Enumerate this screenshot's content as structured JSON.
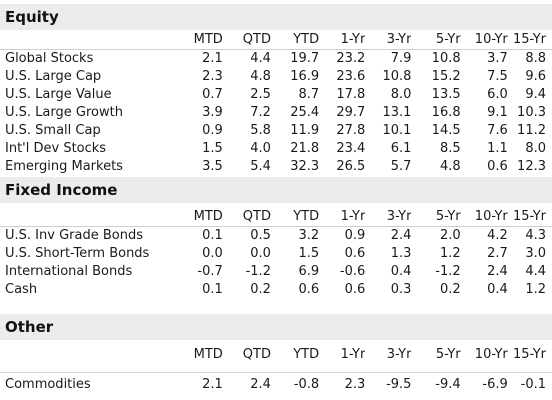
{
  "columns": [
    "MTD",
    "QTD",
    "YTD",
    "1-Yr",
    "3-Yr",
    "5-Yr",
    "10-Yr",
    "15-Yr"
  ],
  "equity": {
    "title": "Equity",
    "rows": [
      {
        "name": "Global Stocks",
        "values": [
          "2.1",
          "4.4",
          "19.7",
          "23.2",
          "7.9",
          "10.8",
          "3.7",
          "8.8"
        ]
      },
      {
        "name": "U.S. Large Cap",
        "values": [
          "2.3",
          "4.8",
          "16.9",
          "23.6",
          "10.8",
          "15.2",
          "7.5",
          "9.6"
        ]
      },
      {
        "name": "U.S. Large Value",
        "values": [
          "0.7",
          "2.5",
          "8.7",
          "17.8",
          "8.0",
          "13.5",
          "6.0",
          "9.4"
        ]
      },
      {
        "name": "U.S. Large Growth",
        "values": [
          "3.9",
          "7.2",
          "25.4",
          "29.7",
          "13.1",
          "16.8",
          "9.1",
          "10.3"
        ]
      },
      {
        "name": "U.S. Small Cap",
        "values": [
          "0.9",
          "5.8",
          "11.9",
          "27.8",
          "10.1",
          "14.5",
          "7.6",
          "11.2"
        ]
      },
      {
        "name": "Int'l Dev Stocks",
        "values": [
          "1.5",
          "4.0",
          "21.8",
          "23.4",
          "6.1",
          "8.5",
          "1.1",
          "8.0"
        ]
      },
      {
        "name": "Emerging Markets",
        "values": [
          "3.5",
          "5.4",
          "32.3",
          "26.5",
          "5.7",
          "4.8",
          "0.6",
          "12.3"
        ]
      }
    ]
  },
  "fixed_income": {
    "title": "Fixed Income",
    "rows": [
      {
        "name": "U.S. Inv Grade Bonds",
        "values": [
          "0.1",
          "0.5",
          "3.2",
          "0.9",
          "2.4",
          "2.0",
          "4.2",
          "4.3"
        ]
      },
      {
        "name": "U.S. Short-Term Bonds",
        "values": [
          "0.0",
          "0.0",
          "1.5",
          "0.6",
          "1.3",
          "1.2",
          "2.7",
          "3.0"
        ]
      },
      {
        "name": "International Bonds",
        "values": [
          "-0.7",
          "-1.2",
          "6.9",
          "-0.6",
          "0.4",
          "-1.2",
          "2.4",
          "4.4"
        ]
      },
      {
        "name": "Cash",
        "values": [
          "0.1",
          "0.2",
          "0.6",
          "0.6",
          "0.3",
          "0.2",
          "0.4",
          "1.2"
        ]
      }
    ]
  },
  "other": {
    "title": "Other",
    "rows": [
      {
        "name": "Commodities",
        "values": [
          "2.1",
          "2.4",
          "-0.8",
          "2.3",
          "-9.5",
          "-9.4",
          "-6.9",
          "-0.1"
        ]
      }
    ]
  }
}
